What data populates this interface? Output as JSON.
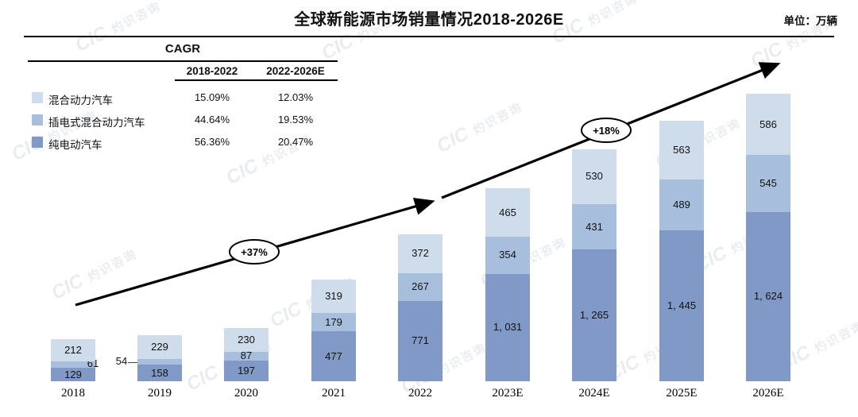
{
  "header": {
    "title": "全球新能源市场销量情况2018-2026E",
    "unit_label": "单位：万辆"
  },
  "cagr_table": {
    "title": "CAGR",
    "columns": [
      "2018-2022",
      "2022-2026E"
    ],
    "rows": [
      {
        "label": "混合动力汽车",
        "swatch": "#cfdcec",
        "values": [
          "15.09%",
          "12.03%"
        ]
      },
      {
        "label": "插电式混合动力汽车",
        "swatch": "#a8bedd",
        "values": [
          "44.64%",
          "19.53%"
        ]
      },
      {
        "label": "纯电动汽车",
        "swatch": "#8099c6",
        "values": [
          "56.36%",
          "20.47%"
        ]
      }
    ]
  },
  "watermark": {
    "cic": "CIC",
    "name": "灼识咨询",
    "subtitle": "China Insights Consultancy"
  },
  "chart_data": {
    "type": "bar",
    "stacked": true,
    "title": "全球新能源市场销量情况2018-2026E",
    "unit": "万辆",
    "grid": false,
    "ylim": [
      0,
      2800
    ],
    "legend_position": "top-left",
    "categories": [
      "2018",
      "2019",
      "2020",
      "2021",
      "2022",
      "2023E",
      "2024E",
      "2025E",
      "2026E"
    ],
    "series": [
      {
        "name": "纯电动汽车",
        "color": "#8099c6",
        "values": [
          129,
          158,
          197,
          477,
          771,
          1031,
          1265,
          1445,
          1624
        ],
        "labels": [
          "129",
          "158",
          "197",
          "477",
          "771",
          "1, 031",
          "1, 265",
          "1, 445",
          "1, 624"
        ]
      },
      {
        "name": "插电式混合动力汽车",
        "color": "#a8bedd",
        "values": [
          61,
          54,
          87,
          179,
          267,
          354,
          431,
          489,
          545
        ],
        "labels": [
          "61",
          "54",
          "87",
          "179",
          "267",
          "354",
          "431",
          "489",
          "545"
        ]
      },
      {
        "name": "混合动力汽车",
        "color": "#cfdcec",
        "values": [
          212,
          229,
          230,
          319,
          372,
          465,
          530,
          563,
          586
        ],
        "labels": [
          "212",
          "229",
          "230",
          "319",
          "372",
          "465",
          "530",
          "563",
          "586"
        ]
      }
    ],
    "annotations": [
      {
        "text": "+37%"
      },
      {
        "text": "+18%"
      }
    ]
  }
}
